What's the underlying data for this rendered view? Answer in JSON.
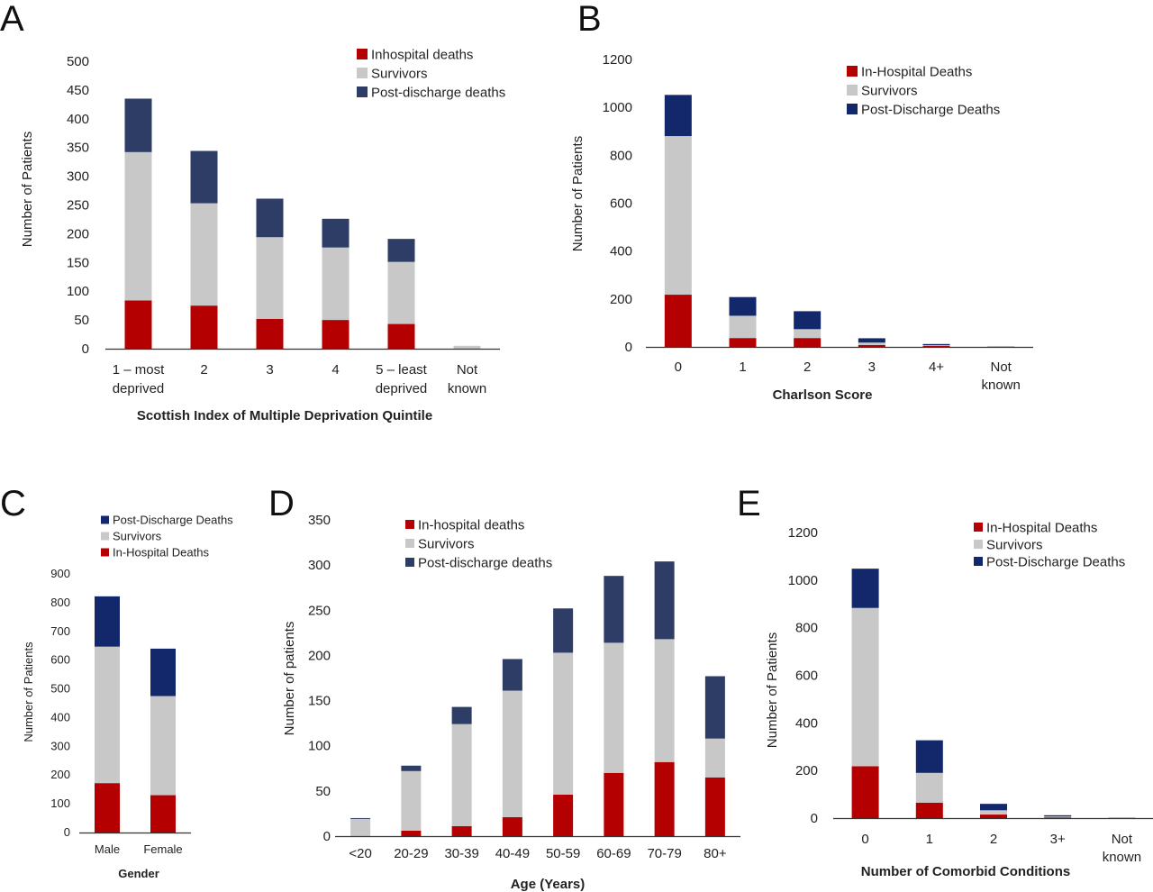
{
  "colors": {
    "inhospital_bright": "#b40000",
    "survivors": "#c8c8c8",
    "postdischarge_slate": "#2e3d66",
    "postdischarge_navy": "#13286a",
    "axis": "#333333"
  },
  "chart_data": [
    {
      "id": "A",
      "letter": "A",
      "type": "bar",
      "stacked": true,
      "xlabel": "Scottish Index of Multiple Deprivation Quintile",
      "ylabel": "Number of Patients",
      "ylim": [
        0,
        500
      ],
      "yticks": [
        0,
        50,
        100,
        150,
        200,
        250,
        300,
        350,
        400,
        450,
        500
      ],
      "categories": [
        [
          "1 – most",
          "deprived"
        ],
        [
          "2"
        ],
        [
          "3"
        ],
        [
          "4"
        ],
        [
          "5 – least",
          "deprived"
        ],
        [
          "Not",
          "known"
        ]
      ],
      "legend_position": "top-right",
      "series": [
        {
          "name": "Inhospital deaths",
          "color": "#b40000",
          "values": [
            84,
            75,
            52,
            50,
            43,
            0
          ]
        },
        {
          "name": "Survivors",
          "color": "#c8c8c8",
          "values": [
            258,
            178,
            142,
            126,
            108,
            5
          ]
        },
        {
          "name": "Post-discharge deaths",
          "color": "#2e3d66",
          "values": [
            93,
            91,
            67,
            50,
            40,
            0
          ]
        }
      ],
      "legend_order": [
        0,
        1,
        2
      ]
    },
    {
      "id": "B",
      "letter": "B",
      "type": "bar",
      "stacked": true,
      "xlabel": "Charlson Score",
      "ylabel": "Number of Patients",
      "ylim": [
        0,
        1200
      ],
      "yticks": [
        0,
        200,
        400,
        600,
        800,
        1000,
        1200
      ],
      "categories": [
        [
          "0"
        ],
        [
          "1"
        ],
        [
          "2"
        ],
        [
          "3"
        ],
        [
          "4+"
        ],
        [
          "Not",
          "known"
        ]
      ],
      "legend_position": "top-right",
      "series": [
        {
          "name": "In-Hospital Deaths",
          "color": "#b40000",
          "values": [
            218,
            37,
            37,
            8,
            5,
            0
          ]
        },
        {
          "name": "Survivors",
          "color": "#c8c8c8",
          "values": [
            662,
            93,
            37,
            10,
            2,
            4
          ]
        },
        {
          "name": "Post-Discharge Deaths",
          "color": "#13286a",
          "values": [
            172,
            78,
            75,
            18,
            5,
            0
          ]
        }
      ],
      "legend_order": [
        0,
        1,
        2
      ]
    },
    {
      "id": "C",
      "letter": "C",
      "type": "bar",
      "stacked": true,
      "xlabel": "Gender",
      "ylabel": "Number of Patients",
      "ylim": [
        0,
        900
      ],
      "yticks": [
        0,
        100,
        200,
        300,
        400,
        500,
        600,
        700,
        800,
        900
      ],
      "categories": [
        [
          "Male"
        ],
        [
          "Female"
        ]
      ],
      "legend_position": "top-left",
      "series": [
        {
          "name": "In-Hospital Deaths",
          "color": "#b40000",
          "values": [
            172,
            130
          ]
        },
        {
          "name": "Survivors",
          "color": "#c8c8c8",
          "values": [
            475,
            345
          ]
        },
        {
          "name": "Post-Discharge Deaths",
          "color": "#13286a",
          "values": [
            175,
            165
          ]
        }
      ],
      "legend_order": [
        2,
        1,
        0
      ]
    },
    {
      "id": "D",
      "letter": "D",
      "type": "bar",
      "stacked": true,
      "xlabel": "Age (Years)",
      "ylabel": "Number of patients",
      "ylim": [
        0,
        350
      ],
      "yticks": [
        0,
        50,
        100,
        150,
        200,
        250,
        300,
        350
      ],
      "categories": [
        [
          "<20"
        ],
        [
          "20-29"
        ],
        [
          "30-39"
        ],
        [
          "40-49"
        ],
        [
          "50-59"
        ],
        [
          "60-69"
        ],
        [
          "70-79"
        ],
        [
          "80+"
        ]
      ],
      "legend_position": "top-left",
      "series": [
        {
          "name": "In-hospital deaths",
          "color": "#b40000",
          "values": [
            0,
            6,
            11,
            21,
            46,
            70,
            82,
            65
          ]
        },
        {
          "name": "Survivors",
          "color": "#c8c8c8",
          "values": [
            19,
            66,
            113,
            140,
            157,
            144,
            136,
            43
          ]
        },
        {
          "name": "Post-discharge deaths",
          "color": "#2e3d66",
          "values": [
            1,
            6,
            19,
            35,
            49,
            74,
            86,
            69
          ]
        }
      ],
      "legend_order": [
        0,
        1,
        2
      ]
    },
    {
      "id": "E",
      "letter": "E",
      "type": "bar",
      "stacked": true,
      "xlabel": "Number of Comorbid Conditions",
      "ylabel": "Number of Patients",
      "ylim": [
        0,
        1200
      ],
      "yticks": [
        0,
        200,
        400,
        600,
        800,
        1000,
        1200
      ],
      "categories": [
        [
          "0"
        ],
        [
          "1"
        ],
        [
          "2"
        ],
        [
          "3+"
        ],
        [
          "Not",
          "known"
        ]
      ],
      "legend_position": "top-right",
      "series": [
        {
          "name": "In-Hospital Deaths",
          "color": "#b40000",
          "values": [
            218,
            65,
            15,
            3,
            0
          ]
        },
        {
          "name": "Survivors",
          "color": "#c8c8c8",
          "values": [
            665,
            125,
            18,
            4,
            4
          ]
        },
        {
          "name": "Post-Discharge Deaths",
          "color": "#13286a",
          "values": [
            165,
            137,
            27,
            5,
            0
          ]
        }
      ],
      "legend_order": [
        0,
        1,
        2
      ]
    }
  ]
}
